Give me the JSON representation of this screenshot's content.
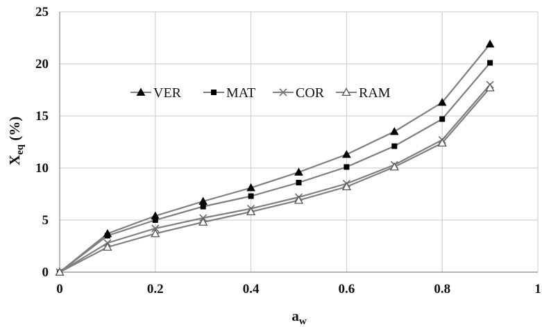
{
  "chart_data": {
    "type": "line",
    "title": "",
    "xlabel_main": "a",
    "xlabel_sub": "w",
    "ylabel_main": "X",
    "ylabel_sub": "eq",
    "ylabel_suffix": " (%)",
    "xlim": [
      0,
      1
    ],
    "ylim": [
      0,
      25
    ],
    "x_ticks": [
      0,
      0.2,
      0.4,
      0.6,
      0.8,
      1
    ],
    "x_tick_labels": [
      "0",
      "0.2",
      "0.4",
      "0.6",
      "0.8",
      "1"
    ],
    "y_ticks": [
      0,
      5,
      10,
      15,
      20,
      25
    ],
    "y_tick_labels": [
      "0",
      "5",
      "10",
      "15",
      "20",
      "25"
    ],
    "grid": true,
    "legend_position": "center-top-inside",
    "x": [
      0,
      0.1,
      0.2,
      0.3,
      0.4,
      0.5,
      0.6,
      0.7,
      0.8,
      0.9
    ],
    "series": [
      {
        "name": "VER",
        "marker": "filled-triangle",
        "color": "#000000",
        "values": [
          0,
          3.7,
          5.4,
          6.8,
          8.1,
          9.6,
          11.3,
          13.5,
          16.3,
          21.9
        ]
      },
      {
        "name": "MAT",
        "marker": "filled-square",
        "color": "#000000",
        "values": [
          0,
          3.5,
          5.0,
          6.3,
          7.3,
          8.6,
          10.1,
          12.1,
          14.7,
          20.1
        ]
      },
      {
        "name": "COR",
        "marker": "x",
        "color": "#7f7f7f",
        "values": [
          0,
          2.8,
          4.2,
          5.2,
          6.1,
          7.2,
          8.5,
          10.3,
          12.7,
          18.0
        ]
      },
      {
        "name": "RAM",
        "marker": "open-triangle",
        "color": "#7f7f7f",
        "values": [
          0,
          2.4,
          3.7,
          4.8,
          5.8,
          6.9,
          8.2,
          10.1,
          12.4,
          17.7
        ]
      }
    ],
    "line_color": "#7f7f7f"
  }
}
